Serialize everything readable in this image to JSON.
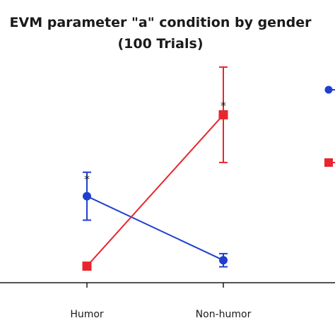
{
  "chart_data": {
    "type": "line",
    "title_line1": "EVM parameter \"a\" condition by gender",
    "title_line2": "(100 Trials)",
    "categories": [
      "Humor",
      "Non-humor"
    ],
    "xlabel": "",
    "ylabel": "",
    "ylim": [
      0,
      1
    ],
    "grid": false,
    "legend_position": "right (cropped)",
    "series": [
      {
        "key": "blue",
        "color": "#1f3fcf",
        "marker": "circle",
        "values": [
          0.408,
          0.106
        ],
        "err": [
          0.113,
          0.031
        ]
      },
      {
        "key": "red",
        "color": "#e8262e",
        "marker": "square",
        "values": [
          0.078,
          0.792
        ],
        "err": [
          0,
          0.225
        ]
      }
    ],
    "annotations": [
      {
        "text": "*",
        "category": "Humor"
      },
      {
        "text": "*",
        "category": "Non-humor"
      }
    ]
  }
}
